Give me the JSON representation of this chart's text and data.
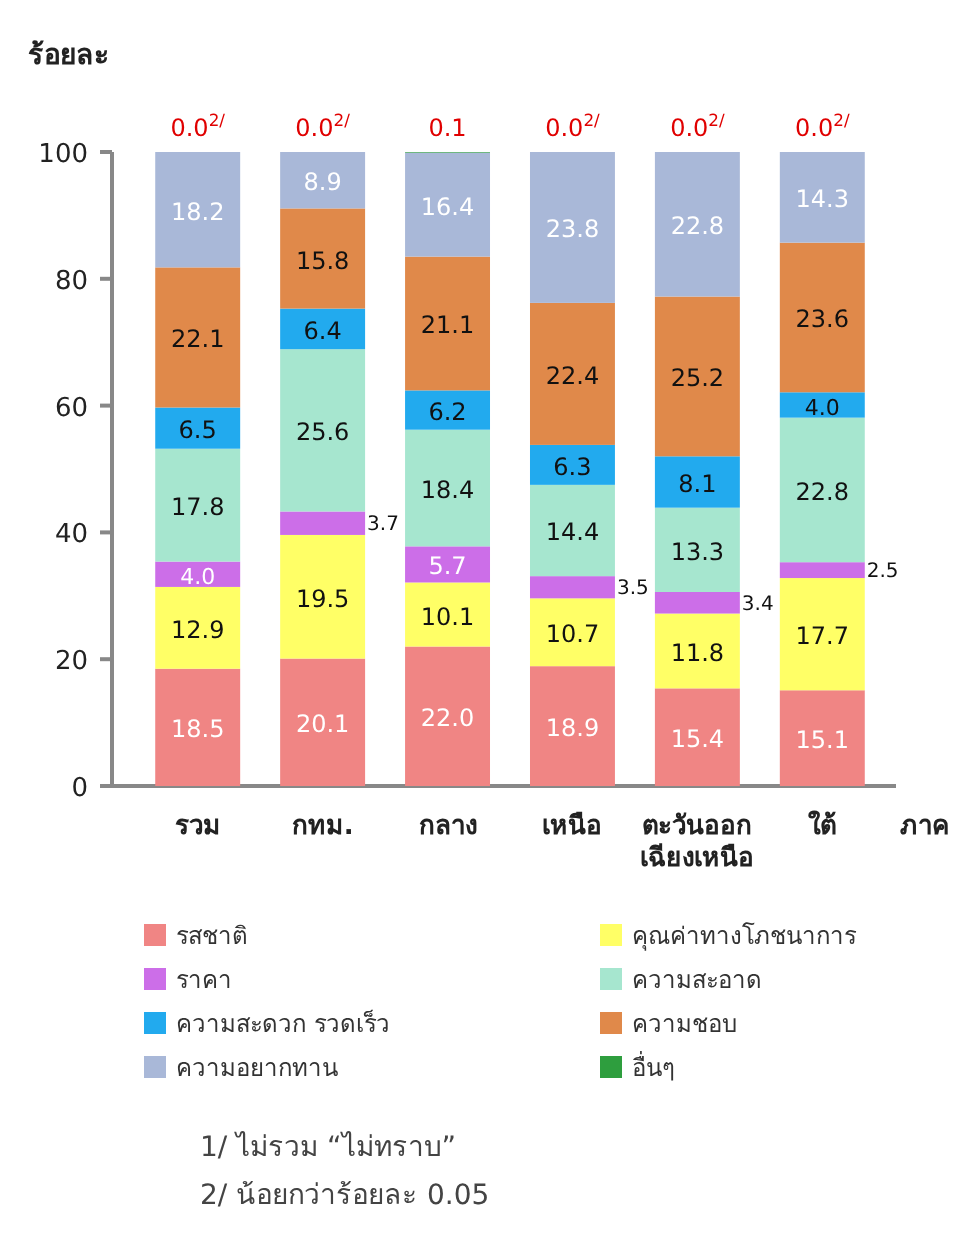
{
  "chart_data": {
    "type": "bar",
    "stacked": true,
    "ylabel": "ร้อยละ",
    "xlabel": "ภาค",
    "categories": [
      "รวม",
      "กทม.",
      "กลาง",
      "เหนือ",
      "ตะวันออก\nเฉียงเหนือ",
      "ใต้"
    ],
    "ylim": [
      0,
      100
    ],
    "yticks": [
      0,
      20,
      40,
      60,
      80,
      100
    ],
    "grid": false,
    "legend": "bottom",
    "series": [
      {
        "name": "รสชาติ",
        "color": "#f08584",
        "values": [
          18.5,
          20.1,
          22.0,
          18.9,
          15.4,
          15.1
        ],
        "value_labels": [
          "18.5",
          "20.1",
          "22.0",
          "18.9",
          "15.4",
          "15.1"
        ]
      },
      {
        "name": "คุณค่าทางโภชนาการ",
        "color": "#ffff66",
        "values": [
          12.9,
          19.5,
          10.1,
          10.7,
          11.8,
          17.7
        ],
        "value_labels": [
          "12.9",
          "19.5",
          "10.1",
          "10.7",
          "11.8",
          "17.7"
        ]
      },
      {
        "name": "ราคา",
        "color": "#cc6ee8",
        "values": [
          4.0,
          3.7,
          5.7,
          3.5,
          3.4,
          2.5
        ],
        "value_labels": [
          "4.0",
          "3.7",
          "5.7",
          "3.5",
          "3.4",
          "2.5"
        ]
      },
      {
        "name": "ความสะอาด",
        "color": "#a6e6cf",
        "values": [
          17.8,
          25.6,
          18.4,
          14.4,
          13.3,
          22.8
        ],
        "value_labels": [
          "17.8",
          "25.6",
          "18.4",
          "14.4",
          "13.3",
          "22.8"
        ]
      },
      {
        "name": "ความสะดวก รวดเร็ว",
        "color": "#22aaee",
        "values": [
          6.5,
          6.4,
          6.2,
          6.3,
          8.1,
          4.0
        ],
        "value_labels": [
          "6.5",
          "6.4",
          "6.2",
          "6.3",
          "8.1",
          "4.0"
        ]
      },
      {
        "name": "ความชอบ",
        "color": "#e0894a",
        "values": [
          22.1,
          15.8,
          21.1,
          22.4,
          25.2,
          23.6
        ],
        "value_labels": [
          "22.1",
          "15.8",
          "21.1",
          "22.4",
          "25.2",
          "23.6"
        ]
      },
      {
        "name": "ความอยากทาน",
        "color": "#a9b8d8",
        "values": [
          18.2,
          8.9,
          16.4,
          23.8,
          22.8,
          14.3
        ],
        "value_labels": [
          "18.2",
          "8.9",
          "16.4",
          "23.8",
          "22.8",
          "14.3"
        ]
      },
      {
        "name": "อื่นๆ",
        "color": "#2e9e3e",
        "values": [
          0.0,
          0.0,
          0.1,
          0.0,
          0.0,
          0.0
        ],
        "value_labels": [
          "0.0$^{2/}$",
          "0.0$^{2/}$",
          "0.1",
          "0.0$^{2/}$",
          "0.0$^{2/}$",
          "0.0$^{2/}$"
        ]
      }
    ],
    "annotations": [
      "1/ ไม่รวม “ไม่ทราบ”",
      "2/ น้อยกว่าร้อยละ 0.05"
    ]
  }
}
